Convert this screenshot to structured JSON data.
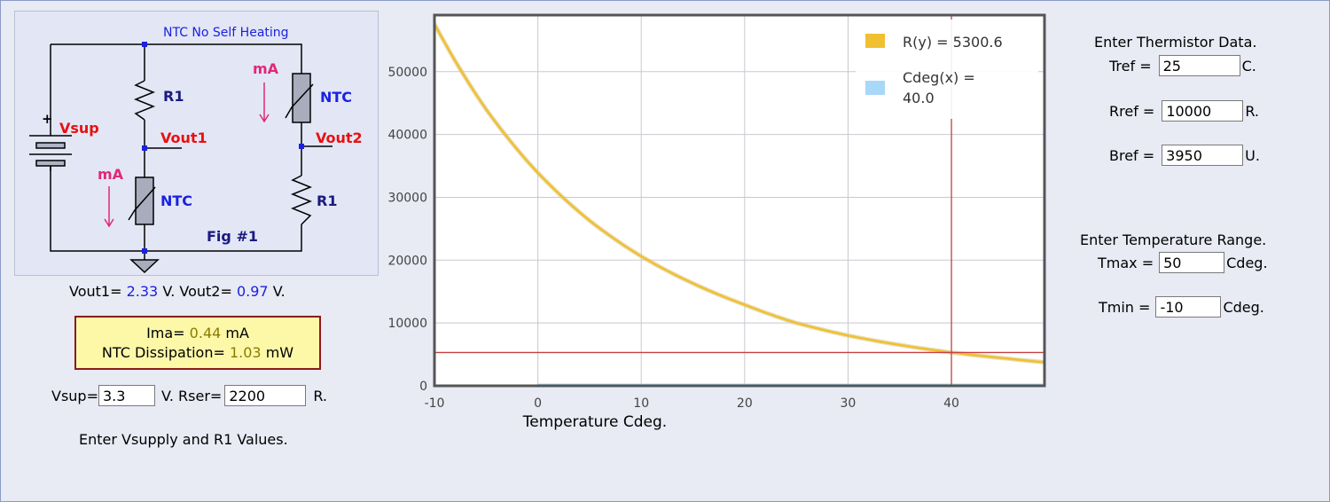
{
  "circuit": {
    "title": "NTC No Self Heating",
    "vsup_label": "Vsup",
    "plus": "+",
    "r1_left": "R1",
    "r1_right": "R1",
    "vout1_label": "Vout1",
    "vout2_label": "Vout2",
    "ma_left": "mA",
    "ma_right": "mA",
    "ntc_left": "NTC",
    "ntc_right": "NTC",
    "fig_label": "Fig #1"
  },
  "readouts": {
    "vout1_prefix": "Vout1=",
    "vout1_value": "2.33",
    "vout1_unit": "V.",
    "vout2_prefix": "Vout2=",
    "vout2_value": "0.97",
    "vout2_unit": "V.",
    "ima_prefix": "Ima=",
    "ima_value": "0.44",
    "ima_unit": "mA",
    "diss_prefix": "NTC Dissipation=",
    "diss_value": "1.03",
    "diss_unit": "mW"
  },
  "supply": {
    "vsup_label": "Vsup=",
    "vsup_value": "3.3",
    "vsup_unit": "V. Rser=",
    "rser_value": "2200",
    "rser_unit": "R.",
    "hint": "Enter Vsupply and R1 Values."
  },
  "thermistor": {
    "heading": "Enter Thermistor Data.",
    "tref_label": "Tref =",
    "tref_value": "25",
    "tref_unit": "C.",
    "rref_label": "Rref =",
    "rref_value": "10000",
    "rref_unit": "R.",
    "bref_label": "Bref =",
    "bref_value": "3950",
    "bref_unit": "U."
  },
  "range": {
    "heading": "Enter Temperature Range.",
    "tmax_label": "Tmax =",
    "tmax_value": "50",
    "tmax_unit": "Cdeg.",
    "tmin_label": "Tmin =",
    "tmin_value": "-10",
    "tmin_unit": "Cdeg."
  },
  "chart_data": {
    "type": "line",
    "xlabel": "Temperature Cdeg.",
    "ylabel": "",
    "xlim": [
      -10,
      49
    ],
    "ylim": [
      0,
      59000
    ],
    "x_ticks": [
      -10,
      0,
      10,
      20,
      30,
      40
    ],
    "y_ticks": [
      0,
      10000,
      20000,
      30000,
      40000,
      50000
    ],
    "grid": true,
    "legend_position": "top-right",
    "cursor": {
      "x": 40,
      "y": 5300.6
    },
    "series": [
      {
        "name": "R(y) = 5300.6",
        "color": "#f0c030",
        "x": [
          -10,
          -5,
          0,
          5,
          10,
          15,
          20,
          25,
          30,
          35,
          40,
          45,
          49
        ],
        "y": [
          57600,
          44000,
          33900,
          26300,
          20600,
          16300,
          12900,
          10000,
          8000,
          6500,
          5300,
          4400,
          3750
        ]
      },
      {
        "name": "Cdeg(x) = 40.0",
        "color": "#a8d8f8",
        "x": [
          0,
          49
        ],
        "y": [
          0,
          0
        ]
      }
    ]
  }
}
